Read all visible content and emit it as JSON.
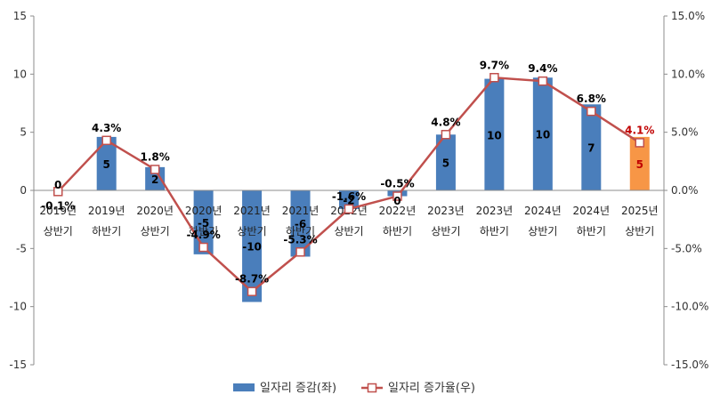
{
  "chart_data": {
    "type": "bar",
    "categories": [
      [
        "2019년",
        "상반기"
      ],
      [
        "2019년",
        "하반기"
      ],
      [
        "2020년",
        "상반기"
      ],
      [
        "2020년",
        "하반기"
      ],
      [
        "2021년",
        "상반기"
      ],
      [
        "2021년",
        "하반기"
      ],
      [
        "2022년",
        "상반기"
      ],
      [
        "2022년",
        "하반기"
      ],
      [
        "2023년",
        "상반기"
      ],
      [
        "2023년",
        "하반기"
      ],
      [
        "2024년",
        "상반기"
      ],
      [
        "2024년",
        "하반기"
      ],
      [
        "2025년",
        "상반기"
      ]
    ],
    "series": [
      {
        "name": "일자리 증감(좌)",
        "type": "bar",
        "axis": "left",
        "values": [
          0,
          4.6,
          2.0,
          -5.5,
          -9.6,
          -5.7,
          -1.6,
          -0.5,
          4.8,
          9.6,
          9.7,
          7.4,
          4.6
        ],
        "labels": [
          "0",
          "5",
          "2",
          "-5",
          "-10",
          "-6",
          "-2",
          "0",
          "5",
          "10",
          "10",
          "7",
          "5"
        ],
        "color": "#4a7ebb",
        "highlight_color": "#f79646",
        "highlight_index": 12
      },
      {
        "name": "일자리 증가율(우)",
        "type": "line",
        "axis": "right",
        "values": [
          -0.1,
          4.3,
          1.8,
          -4.9,
          -8.7,
          -5.3,
          -1.6,
          -0.5,
          4.8,
          9.7,
          9.4,
          6.8,
          4.1
        ],
        "labels": [
          "-0.1%",
          "4.3%",
          "1.8%",
          "-4.9%",
          "-8.7%",
          "-5.3%",
          "-1.6%",
          "-0.5%",
          "4.8%",
          "9.7%",
          "9.4%",
          "6.8%",
          "4.1%"
        ],
        "color": "#c0504d",
        "highlight_label_color": "#c00000",
        "highlight_index": 12
      }
    ],
    "y_left": {
      "min": -15,
      "max": 15,
      "ticks": [
        "-15",
        "-10",
        "-5",
        "0",
        "5",
        "10",
        "15"
      ]
    },
    "y_right": {
      "min": -15,
      "max": 15,
      "ticks": [
        "-15.0%",
        "-10.0%",
        "-5.0%",
        "0.0%",
        "5.0%",
        "10.0%",
        "15.0%"
      ]
    },
    "legend": {
      "position": "bottom"
    },
    "grid": false
  }
}
